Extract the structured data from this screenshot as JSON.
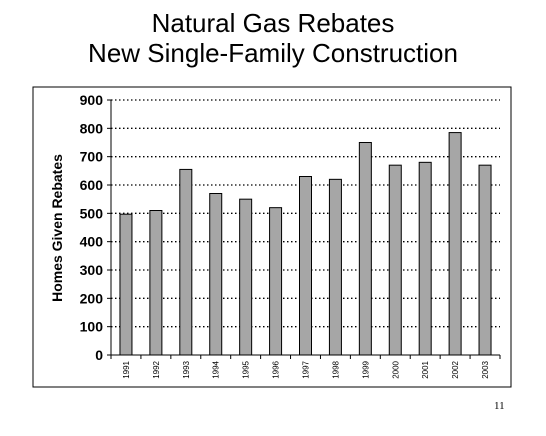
{
  "slide": {
    "title_line1": "Natural Gas Rebates",
    "title_line2": "New Single-Family Construction",
    "page_number": "11"
  },
  "chart_data": {
    "type": "bar",
    "title": "Natural Gas Rebates New Single-Family Construction",
    "xlabel": "",
    "ylabel": "Homes Given Rebates",
    "ylim": [
      0,
      900
    ],
    "yticks": [
      0,
      100,
      200,
      300,
      400,
      500,
      600,
      700,
      800,
      900
    ],
    "grid": true,
    "categories": [
      "1991",
      "1992",
      "1993",
      "1994",
      "1995",
      "1996",
      "1997",
      "1998",
      "1999",
      "2000",
      "2001",
      "2002",
      "2003"
    ],
    "values": [
      497,
      510,
      655,
      570,
      550,
      520,
      630,
      620,
      750,
      670,
      680,
      785,
      670
    ],
    "bar_color": "#a6a6a6"
  }
}
